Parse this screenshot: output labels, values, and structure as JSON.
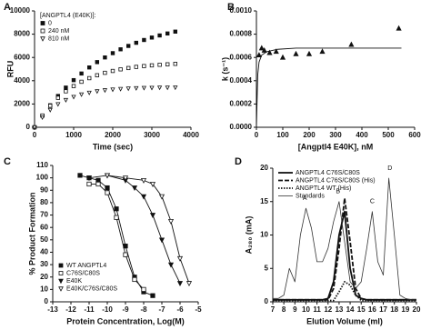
{
  "chart_data": [
    {
      "type": "scatter",
      "panel": "A",
      "x_label": "Time (sec)",
      "y_label": "RFU",
      "xlim": [
        0,
        4000
      ],
      "xticks": [
        0,
        1000,
        2000,
        3000,
        4000
      ],
      "ylim": [
        0,
        10000
      ],
      "yticks": [
        0,
        2000,
        4000,
        6000,
        8000,
        10000
      ],
      "legend_title": "[ANGPTL4 (E40K)]:",
      "legend": "upper left",
      "x": [
        0,
        200,
        400,
        600,
        800,
        1000,
        1200,
        1400,
        1600,
        1800,
        2000,
        2200,
        2400,
        2600,
        2800,
        3000,
        3200,
        3400,
        3600
      ],
      "series": [
        {
          "name": "0",
          "color": "#111111",
          "marker": "filled-square",
          "mode": "markers",
          "values": [
            0,
            1000,
            1890,
            2690,
            3410,
            4050,
            4620,
            5140,
            5600,
            6000,
            6370,
            6700,
            6990,
            7260,
            7500,
            7710,
            7890,
            8060,
            8220
          ]
        },
        {
          "name": "240 nM",
          "color": "#111111",
          "marker": "open-square",
          "mode": "markers",
          "values": [
            0,
            1010,
            1850,
            2530,
            3090,
            3540,
            3910,
            4220,
            4470,
            4680,
            4840,
            4980,
            5090,
            5190,
            5260,
            5320,
            5370,
            5410,
            5450
          ]
        },
        {
          "name": "810 nM",
          "color": "#111111",
          "marker": "open-triangle-down",
          "mode": "markers",
          "values": [
            0,
            860,
            1500,
            1990,
            2350,
            2620,
            2830,
            2980,
            3100,
            3190,
            3250,
            3300,
            3340,
            3370,
            3390,
            3400,
            3420,
            3420,
            3430
          ]
        }
      ]
    },
    {
      "type": "scatter",
      "panel": "B",
      "x_label": "[Angptl4  E40K], nM",
      "y_label": "k (s⁻¹)",
      "xlim": [
        0,
        600
      ],
      "xticks": [
        0,
        100,
        200,
        300,
        400,
        500,
        600
      ],
      "ylim": [
        0,
        0.001
      ],
      "yticks": [
        {
          "value": 0,
          "label": "0.0000"
        },
        {
          "value": 0.0002,
          "label": "0.0002"
        },
        {
          "value": 0.0004,
          "label": "0.0004"
        },
        {
          "value": 0.0006,
          "label": "0.0006"
        },
        {
          "value": 0.0008,
          "label": "0.0008"
        },
        {
          "value": 0.001,
          "label": "0.0010"
        }
      ],
      "series": [
        {
          "color": "#111111",
          "marker": "filled-triangle",
          "mode": "markers",
          "x": [
            10,
            20,
            30,
            50,
            75,
            100,
            150,
            200,
            250,
            360,
            540
          ],
          "values": [
            0.00062,
            0.00068,
            0.00066,
            0.00064,
            0.00065,
            0.0006,
            0.00063,
            0.00063,
            0.00065,
            0.00071,
            0.00085
          ]
        },
        {
          "color": "#111111",
          "mode": "line",
          "x": [
            0,
            5,
            10,
            20,
            40,
            80,
            150,
            300,
            550
          ],
          "values": [
            0,
            0.00045,
            0.00056,
            0.00062,
            0.00065,
            0.00067,
            0.00068,
            0.00068,
            0.00068
          ]
        }
      ]
    },
    {
      "type": "scatter",
      "panel": "C",
      "x_label": "Protein Concentration, Log(M)",
      "y_label": "% Product Formation",
      "xlim": [
        -13,
        -5
      ],
      "xticks": [
        -13,
        -12,
        -11,
        -10,
        -9,
        -8,
        -7,
        -6,
        -5
      ],
      "ylim": [
        0,
        110
      ],
      "yticks": [
        0,
        10,
        20,
        30,
        40,
        50,
        60,
        70,
        80,
        90,
        100,
        110
      ],
      "legend": "lower left",
      "series": [
        {
          "name": "WT ANGPTL4",
          "color": "#111111",
          "marker": "filled-square",
          "mode": "line+markers",
          "x": [
            -11.5,
            -11,
            -10.5,
            -10,
            -9.5,
            -9,
            -8.5,
            -8,
            -7.5
          ],
          "values": [
            102,
            100,
            98,
            92,
            75,
            45,
            20,
            8,
            5
          ]
        },
        {
          "name": "C76S/C80S",
          "color": "#111111",
          "marker": "open-square",
          "mode": "line+markers",
          "x": [
            -11,
            -10.5,
            -10,
            -9.5,
            -9,
            -8.5,
            -8
          ],
          "values": [
            95,
            95,
            88,
            68,
            38,
            18,
            10
          ]
        },
        {
          "name": "E40K",
          "color": "#111111",
          "marker": "filled-triangle-down",
          "mode": "line+markers",
          "x": [
            -11,
            -10,
            -9,
            -8.5,
            -8,
            -7.5,
            -7,
            -6.5,
            -6
          ],
          "values": [
            100,
            102,
            98,
            92,
            85,
            70,
            50,
            30,
            15
          ]
        },
        {
          "name": "E40K/C76S/C80S",
          "color": "#111111",
          "marker": "open-triangle-down",
          "mode": "line+markers",
          "x": [
            -10,
            -9,
            -8,
            -7.5,
            -7,
            -6.5,
            -6,
            -5.5
          ],
          "values": [
            102,
            100,
            98,
            95,
            85,
            65,
            35,
            15
          ]
        }
      ]
    },
    {
      "type": "line",
      "panel": "D",
      "x_label": "Elution Volume (ml)",
      "y_label": "A₂₈₀ (mA)",
      "xlim": [
        7,
        20
      ],
      "xticks": [
        7,
        8,
        9,
        10,
        11,
        12,
        13,
        14,
        15,
        16,
        17,
        18,
        19,
        20
      ],
      "ylim": [
        0,
        20
      ],
      "yticks": [
        0,
        5,
        10,
        15,
        20
      ],
      "legend": "upper left",
      "x": [
        7,
        7.5,
        8,
        8.5,
        9,
        9.5,
        10,
        10.5,
        11,
        11.5,
        12,
        12.5,
        13,
        13.5,
        14,
        14.5,
        15,
        15.5,
        16,
        16.5,
        17,
        17.5,
        18,
        18.5,
        19,
        19.5,
        20
      ],
      "series": [
        {
          "name": "ANGPTL4 C76S/C80S",
          "color": "#111111",
          "line_style": "solid",
          "line_weight": "heavy",
          "values": [
            0.3,
            0.3,
            0.3,
            0.3,
            0.3,
            0.3,
            0.3,
            0.3,
            0.3,
            0.3,
            0.5,
            3,
            10,
            13.5,
            5,
            1,
            0.5,
            0.3,
            0.3,
            0.3,
            0.3,
            0.3,
            0.3,
            0.3,
            0.3,
            0.3,
            0.3
          ]
        },
        {
          "name": "ANGPTL4 C76S/C80S (His)",
          "color": "#111111",
          "line_style": "dashed",
          "line_weight": "heavy",
          "values": [
            0.3,
            0.3,
            0.3,
            0.3,
            0.3,
            0.3,
            0.3,
            0.3,
            0.3,
            0.3,
            0.3,
            2,
            8,
            15.5,
            9,
            2,
            0.5,
            0.3,
            0.3,
            0.3,
            0.3,
            0.3,
            0.3,
            0.3,
            0.3,
            0.3,
            0.3
          ]
        },
        {
          "name": "ANGPTL4 WT (His)",
          "color": "#111111",
          "line_style": "dotted",
          "line_weight": "heavy",
          "values": [
            0.2,
            0.2,
            0.2,
            0.2,
            0.2,
            0.2,
            0.2,
            0.2,
            0.2,
            0.2,
            0.2,
            0.2,
            1.5,
            3,
            2.5,
            1,
            0.2,
            0.2,
            0.2,
            0.2,
            0.2,
            0.2,
            0.2,
            0.2,
            0.2,
            0.2,
            0.2
          ]
        },
        {
          "name": "Standards",
          "color": "#333333",
          "line_style": "solid",
          "line_weight": "light",
          "values": [
            0.5,
            0.5,
            1,
            5,
            3,
            10,
            14,
            11,
            6,
            6,
            8,
            12,
            15,
            9,
            3,
            2,
            3,
            8,
            13.5,
            6,
            4,
            18.5,
            10,
            1,
            0.5,
            0.3,
            0.3
          ]
        }
      ],
      "annotations": [
        {
          "text": "A",
          "x": 9.9,
          "y": 15.5
        },
        {
          "text": "B",
          "x": 12.9,
          "y": 16.5
        },
        {
          "text": "C",
          "x": 16,
          "y": 15
        },
        {
          "text": "D",
          "x": 17.6,
          "y": 20
        }
      ]
    }
  ]
}
